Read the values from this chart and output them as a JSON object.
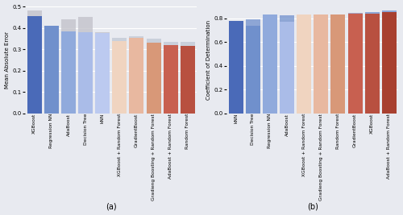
{
  "chart_a": {
    "ylabel": "Mean Absolute Error",
    "ylim": [
      0,
      0.5
    ],
    "yticks": [
      0.0,
      0.1,
      0.2,
      0.3,
      0.4,
      0.5
    ],
    "categories": [
      "XGBoost",
      "Regression NN",
      "AdaBoost",
      "Decision Tree",
      "kNN",
      "XGBoost + Random Forest",
      "GradientBoost",
      "Gradieng Boosting + Random Forest",
      "AdaBoost + Random Forest",
      "Random Forest"
    ],
    "main_values": [
      0.455,
      0.41,
      0.385,
      0.38,
      0.375,
      0.34,
      0.355,
      0.33,
      0.32,
      0.315
    ],
    "top_values": [
      0.025,
      0.0,
      0.055,
      0.07,
      0.005,
      0.015,
      0.005,
      0.02,
      0.015,
      0.02
    ],
    "bar_colors": [
      "#4a6ab8",
      "#7090cc",
      "#90aadc",
      "#aabce8",
      "#bccaf0",
      "#f0d4c0",
      "#e8b8a0",
      "#d89878",
      "#c86050",
      "#b85040"
    ],
    "top_colors": [
      "#c0c0c8",
      "#c0c0c8",
      "#c0c0c8",
      "#c0c0c8",
      "#c0c0c8",
      "#c0c8d4",
      "#c0c8d4",
      "#c0c8d4",
      "#c0c8d4",
      "#c0c8d4"
    ],
    "bg_color": "#e8eaf0",
    "xlabel": "(a)"
  },
  "chart_b": {
    "ylabel": "Coefficient of Determination",
    "ylim": [
      0,
      0.9
    ],
    "yticks": [
      0.0,
      0.2,
      0.4,
      0.6,
      0.8
    ],
    "categories": [
      "kNN",
      "Decision Tree",
      "Regression NN",
      "AdaBoost",
      "XGBoost + Random Forest",
      "Gradieng Boosting + Random Forest",
      "Random Forest",
      "GradientBoost",
      "XGBoost",
      "AdaBoost + Random Forest"
    ],
    "main_values": [
      0.78,
      0.735,
      0.835,
      0.775,
      0.835,
      0.835,
      0.833,
      0.838,
      0.84,
      0.855
    ],
    "top_values": [
      0.0,
      0.06,
      0.0,
      0.05,
      0.0,
      0.0,
      0.0,
      0.005,
      0.01,
      0.01
    ],
    "bar_colors": [
      "#4a6ab8",
      "#7090cc",
      "#90aadc",
      "#aabce8",
      "#f0d4c0",
      "#e8b8a0",
      "#d89878",
      "#c86050",
      "#b85040",
      "#a84030"
    ],
    "top_colors": [
      "#7090cc",
      "#7090cc",
      "#7090cc",
      "#7090cc",
      "#f0d4c0",
      "#e8b8a0",
      "#d89878",
      "#9090b8",
      "#7090cc",
      "#7090cc"
    ],
    "bg_color": "#e8eaf0",
    "xlabel": "(b)"
  }
}
